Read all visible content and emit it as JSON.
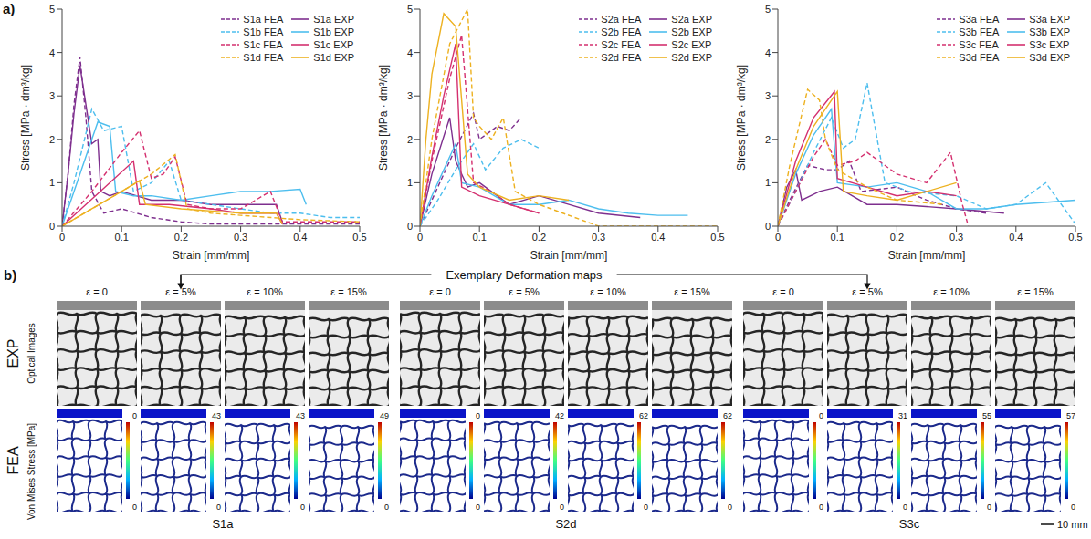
{
  "chart_data": [
    {
      "type": "line",
      "x_label": "Strain [mm/mm]",
      "y_label": "Stress [MPa · dm³/kg]",
      "xlim": [
        0,
        0.5
      ],
      "xticks": [
        0,
        0.1,
        0.2,
        0.3,
        0.4,
        0.5
      ],
      "ylim": [
        0,
        5
      ],
      "yticks": [
        0,
        1,
        2,
        3,
        4,
        5
      ],
      "legend": "top-right",
      "grid": false,
      "series": [
        {
          "name": "S1a FEA",
          "color": "#7E2F8E",
          "line_style": "dashed",
          "x": [
            0,
            0.01,
            0.02,
            0.03,
            0.04,
            0.05,
            0.07,
            0.1,
            0.15,
            0.2,
            0.25,
            0.3,
            0.35,
            0.4,
            0.5
          ],
          "values": [
            0,
            1.2,
            2.8,
            3.9,
            2.5,
            0.8,
            0.3,
            0.4,
            0.2,
            0.1,
            0.05,
            0.05,
            0.05,
            0.05,
            0.05
          ]
        },
        {
          "name": "S1a EXP",
          "color": "#7E2F8E",
          "line_style": "solid",
          "x": [
            0,
            0.01,
            0.02,
            0.03,
            0.04,
            0.05,
            0.06,
            0.065,
            0.08,
            0.1,
            0.15,
            0.2,
            0.25,
            0.3,
            0.36,
            0.37
          ],
          "values": [
            0,
            1.2,
            2.6,
            3.7,
            2.8,
            1.9,
            2.0,
            0.8,
            0.7,
            0.8,
            0.6,
            0.6,
            0.5,
            0.5,
            0.5,
            0.1
          ]
        },
        {
          "name": "S1b FEA",
          "color": "#4DBEEE",
          "line_style": "dashed",
          "x": [
            0,
            0.02,
            0.05,
            0.07,
            0.1,
            0.12,
            0.15,
            0.18,
            0.2,
            0.25,
            0.3,
            0.35,
            0.4,
            0.45,
            0.5
          ],
          "values": [
            0,
            1.0,
            2.7,
            2.2,
            2.3,
            0.8,
            1.0,
            1.5,
            0.6,
            0.5,
            0.4,
            0.3,
            0.3,
            0.2,
            0.2
          ]
        },
        {
          "name": "S1b EXP",
          "color": "#4DBEEE",
          "line_style": "solid",
          "x": [
            0,
            0.02,
            0.04,
            0.06,
            0.08,
            0.09,
            0.12,
            0.15,
            0.2,
            0.25,
            0.3,
            0.35,
            0.4,
            0.41
          ],
          "values": [
            0,
            0.8,
            1.6,
            2.4,
            2.3,
            0.8,
            0.7,
            0.7,
            0.6,
            0.7,
            0.8,
            0.8,
            0.85,
            0.5
          ]
        },
        {
          "name": "S1c FEA",
          "color": "#D4306F",
          "line_style": "dashed",
          "x": [
            0,
            0.05,
            0.1,
            0.13,
            0.15,
            0.17,
            0.19,
            0.21,
            0.25,
            0.3,
            0.35,
            0.37,
            0.5
          ],
          "values": [
            0,
            0.8,
            1.7,
            2.2,
            1.1,
            1.2,
            1.6,
            0.5,
            0.4,
            0.4,
            0.8,
            0.1,
            0.1
          ]
        },
        {
          "name": "S1c EXP",
          "color": "#D4306F",
          "line_style": "solid",
          "x": [
            0,
            0.04,
            0.08,
            0.12,
            0.13,
            0.18,
            0.25,
            0.3,
            0.36,
            0.37
          ],
          "values": [
            0,
            0.5,
            1.0,
            1.5,
            0.5,
            0.5,
            0.4,
            0.3,
            0.3,
            0.05
          ]
        },
        {
          "name": "S1d FEA",
          "color": "#EDB120",
          "line_style": "dashed",
          "x": [
            0,
            0.05,
            0.1,
            0.15,
            0.19,
            0.21,
            0.25,
            0.3,
            0.4,
            0.5
          ],
          "values": [
            0,
            0.4,
            0.8,
            1.2,
            1.65,
            0.4,
            0.3,
            0.25,
            0.15,
            0.1
          ]
        },
        {
          "name": "S1d EXP",
          "color": "#EDB120",
          "line_style": "solid",
          "x": [
            0,
            0.05,
            0.1,
            0.13,
            0.14,
            0.2,
            0.3,
            0.36,
            0.37
          ],
          "values": [
            0,
            0.4,
            0.8,
            1.05,
            0.5,
            0.4,
            0.3,
            0.3,
            0.05
          ]
        }
      ]
    },
    {
      "type": "line",
      "x_label": "Strain [mm/mm]",
      "y_label": "Stress [MPa · dm³/kg]",
      "xlim": [
        0,
        0.5
      ],
      "xticks": [
        0,
        0.1,
        0.2,
        0.3,
        0.4,
        0.5
      ],
      "ylim": [
        0,
        5
      ],
      "yticks": [
        0,
        1,
        2,
        3,
        4,
        5
      ],
      "legend": "top-right",
      "grid": false,
      "series": [
        {
          "name": "S2a FEA",
          "color": "#7E2F8E",
          "line_style": "dashed",
          "x": [
            0,
            0.03,
            0.06,
            0.09,
            0.1,
            0.13,
            0.15,
            0.17
          ],
          "values": [
            0,
            0.9,
            1.8,
            2.6,
            2.0,
            2.3,
            2.2,
            2.5
          ]
        },
        {
          "name": "S2a EXP",
          "color": "#7E2F8E",
          "line_style": "solid",
          "x": [
            0,
            0.02,
            0.05,
            0.06,
            0.08,
            0.1,
            0.15,
            0.2,
            0.25,
            0.3,
            0.37
          ],
          "values": [
            0,
            1.2,
            2.5,
            1.5,
            0.9,
            1.0,
            0.5,
            0.7,
            0.5,
            0.3,
            0.2
          ]
        },
        {
          "name": "S2b FEA",
          "color": "#4DBEEE",
          "line_style": "dashed",
          "x": [
            0,
            0.03,
            0.06,
            0.09,
            0.11,
            0.14,
            0.17,
            0.2
          ],
          "values": [
            0,
            0.6,
            1.3,
            1.9,
            1.3,
            1.8,
            2.0,
            1.8
          ]
        },
        {
          "name": "S2b EXP",
          "color": "#4DBEEE",
          "line_style": "solid",
          "x": [
            0,
            0.02,
            0.04,
            0.06,
            0.07,
            0.1,
            0.15,
            0.2,
            0.25,
            0.3,
            0.35,
            0.4,
            0.45
          ],
          "values": [
            0,
            0.7,
            1.3,
            1.9,
            1.0,
            0.9,
            0.5,
            0.5,
            0.6,
            0.4,
            0.3,
            0.25,
            0.25
          ]
        },
        {
          "name": "S2c FEA",
          "color": "#D4306F",
          "line_style": "dashed",
          "x": [
            0,
            0.02,
            0.05,
            0.07,
            0.09,
            0.12,
            0.15,
            0.2
          ],
          "values": [
            0,
            1.5,
            3.4,
            4.4,
            1.0,
            0.8,
            0.5,
            0.3
          ]
        },
        {
          "name": "S2c EXP",
          "color": "#D4306F",
          "line_style": "solid",
          "x": [
            0,
            0.02,
            0.04,
            0.06,
            0.07,
            0.1,
            0.15,
            0.2
          ],
          "values": [
            0,
            1.6,
            3.0,
            4.2,
            0.9,
            0.7,
            0.5,
            0.3
          ]
        },
        {
          "name": "S2d FEA",
          "color": "#EDB120",
          "line_style": "dashed",
          "x": [
            0,
            0.02,
            0.05,
            0.08,
            0.09,
            0.1,
            0.12,
            0.14,
            0.16,
            0.2,
            0.3,
            0.5
          ],
          "values": [
            0,
            2.0,
            4.2,
            5.0,
            2.5,
            2.3,
            2.0,
            2.5,
            0.8,
            0.5,
            0,
            0
          ]
        },
        {
          "name": "S2d EXP",
          "color": "#EDB120",
          "line_style": "solid",
          "x": [
            0,
            0.01,
            0.02,
            0.04,
            0.06,
            0.08,
            0.1,
            0.15,
            0.2,
            0.25
          ],
          "values": [
            0,
            2.0,
            3.5,
            4.9,
            4.6,
            1.2,
            0.9,
            0.6,
            0.7,
            0.6
          ]
        }
      ]
    },
    {
      "type": "line",
      "x_label": "Strain [mm/mm]",
      "y_label": "Stress [MPa · dm³/kg]",
      "xlim": [
        0,
        0.5
      ],
      "xticks": [
        0,
        0.1,
        0.2,
        0.3,
        0.4,
        0.5
      ],
      "ylim": [
        0,
        5
      ],
      "yticks": [
        0,
        1,
        2,
        3,
        4,
        5
      ],
      "legend": "top-right",
      "grid": false,
      "series": [
        {
          "name": "S3a FEA",
          "color": "#7E2F8E",
          "line_style": "dashed",
          "x": [
            0,
            0.02,
            0.05,
            0.08,
            0.1,
            0.12,
            0.14,
            0.2,
            0.25,
            0.3,
            0.35
          ],
          "values": [
            0,
            0.6,
            1.4,
            1.3,
            1.3,
            1.5,
            0.8,
            0.9,
            0.6,
            0.4,
            0.3
          ]
        },
        {
          "name": "S3a EXP",
          "color": "#7E2F8E",
          "line_style": "solid",
          "x": [
            0,
            0.015,
            0.03,
            0.04,
            0.07,
            0.1,
            0.15,
            0.2,
            0.3,
            0.38
          ],
          "values": [
            0,
            0.9,
            1.3,
            0.6,
            0.8,
            0.9,
            0.5,
            0.5,
            0.4,
            0.3
          ]
        },
        {
          "name": "S3b FEA",
          "color": "#4DBEEE",
          "line_style": "dashed",
          "x": [
            0,
            0.03,
            0.06,
            0.09,
            0.11,
            0.13,
            0.15,
            0.18,
            0.22,
            0.3,
            0.35,
            0.4,
            0.45,
            0.5
          ],
          "values": [
            0,
            0.8,
            1.7,
            2.5,
            1.8,
            2.0,
            3.3,
            1.0,
            0.8,
            0.7,
            0.4,
            0.5,
            1.0,
            0.05
          ]
        },
        {
          "name": "S3b EXP",
          "color": "#4DBEEE",
          "line_style": "solid",
          "x": [
            0,
            0.03,
            0.06,
            0.09,
            0.1,
            0.15,
            0.2,
            0.25,
            0.3,
            0.35,
            0.4,
            0.5
          ],
          "values": [
            0,
            1.2,
            2.1,
            2.7,
            1.0,
            0.9,
            1.0,
            0.8,
            0.4,
            0.4,
            0.5,
            0.6
          ]
        },
        {
          "name": "S3c FEA",
          "color": "#D4306F",
          "line_style": "dashed",
          "x": [
            0,
            0.03,
            0.06,
            0.08,
            0.1,
            0.13,
            0.15,
            0.2,
            0.25,
            0.29,
            0.31,
            0.32
          ],
          "values": [
            0,
            0.8,
            1.6,
            2.0,
            1.4,
            1.5,
            1.7,
            1.2,
            1.0,
            1.7,
            0.5,
            0
          ]
        },
        {
          "name": "S3c EXP",
          "color": "#D4306F",
          "line_style": "solid",
          "x": [
            0,
            0.03,
            0.06,
            0.095,
            0.1,
            0.15,
            0.2,
            0.25,
            0.3
          ],
          "values": [
            0,
            1.5,
            2.5,
            3.1,
            1.1,
            0.9,
            0.7,
            0.8,
            0.7
          ]
        },
        {
          "name": "S3d FEA",
          "color": "#EDB120",
          "line_style": "dashed",
          "x": [
            0,
            0.02,
            0.05,
            0.07,
            0.08,
            0.1,
            0.15,
            0.2,
            0.28
          ],
          "values": [
            0,
            1.4,
            3.15,
            2.9,
            2.0,
            1.3,
            0.9,
            0.6,
            0.5
          ]
        },
        {
          "name": "S3d EXP",
          "color": "#EDB120",
          "line_style": "solid",
          "x": [
            0,
            0.03,
            0.06,
            0.1,
            0.11,
            0.15,
            0.2,
            0.25,
            0.3
          ],
          "values": [
            0,
            1.3,
            2.3,
            3.1,
            0.8,
            0.7,
            0.6,
            0.8,
            1.0
          ]
        }
      ]
    }
  ],
  "panel_labels": [
    "a)",
    "b)"
  ],
  "deformation_maps": {
    "title": "Exemplary Deformation maps",
    "strains": [
      "ε = 0",
      "ε = 5%",
      "ε = 10%",
      "ε = 15%"
    ],
    "rows": [
      {
        "label": "EXP",
        "sublabel": "Optical Images"
      },
      {
        "label": "FEA",
        "sublabel": "Von Mises Stress [MPa]"
      }
    ],
    "groups": [
      {
        "name": "S1a",
        "colorbar_min": 0,
        "colorbar_max": [
          0,
          43,
          43,
          49
        ]
      },
      {
        "name": "S2d",
        "colorbar_min": 0,
        "colorbar_max": [
          0,
          42,
          62,
          62
        ]
      },
      {
        "name": "S3c",
        "colorbar_min": 0,
        "colorbar_max": [
          0,
          31,
          55,
          57
        ]
      }
    ],
    "scale_bar": "10 mm"
  }
}
